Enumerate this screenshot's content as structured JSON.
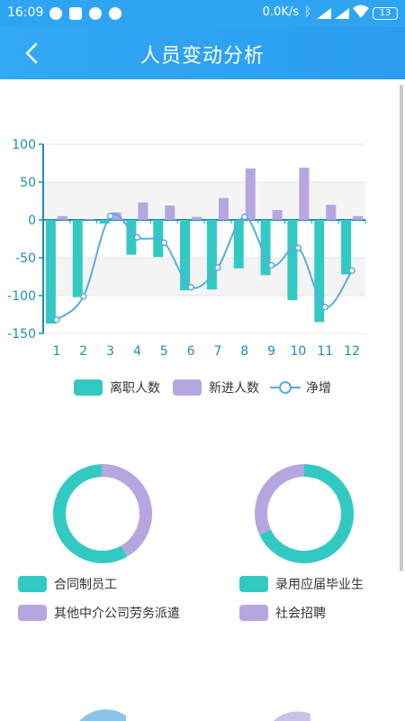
{
  "status_bar": {
    "time": "16:09",
    "network_speed": "0.0K/s",
    "battery_level": "13",
    "icons": [
      "notification-icon",
      "notification-icon",
      "notification-icon",
      "notification-icon",
      "bluetooth-icon",
      "signal-icon",
      "signal-icon",
      "wifi-icon",
      "battery-icon"
    ]
  },
  "header": {
    "title": "人员变动分析",
    "back_icon": "chevron-left-icon"
  },
  "colors": {
    "header": "#2fa4f3",
    "leave": "#33c9c3",
    "hire": "#b5a6e0",
    "net": "#5aacdf",
    "axis": "#1e8db4"
  },
  "chart_data": [
    {
      "type": "bar",
      "categories": [
        "1",
        "2",
        "3",
        "4",
        "5",
        "6",
        "7",
        "8",
        "9",
        "10",
        "11",
        "12"
      ],
      "ylim": [
        -150,
        100
      ],
      "y_ticks": [
        "100",
        "50",
        "0",
        "-50",
        "-100",
        "-150"
      ],
      "series": [
        {
          "name": "离职人数",
          "type": "bar",
          "values": [
            -137,
            -102,
            -5,
            -46,
            -49,
            -93,
            -92,
            -64,
            -73,
            -106,
            -135,
            -72
          ]
        },
        {
          "name": "新进人数",
          "type": "bar",
          "values": [
            5,
            1,
            10,
            23,
            19,
            4,
            29,
            68,
            13,
            69,
            20,
            5
          ]
        },
        {
          "name": "净增",
          "type": "line",
          "values": [
            -132,
            -101,
            5,
            -23,
            -30,
            -89,
            -63,
            4,
            -60,
            -37,
            -115,
            -67
          ]
        }
      ],
      "legend_position": "bottom"
    },
    {
      "type": "pie",
      "style": "donut",
      "labels": [
        "合同制员工",
        "其他中介公司劳务派遣"
      ],
      "values": [
        58,
        42
      ]
    },
    {
      "type": "pie",
      "style": "donut",
      "labels": [
        "录用应届毕业生",
        "社会招聘"
      ],
      "values": [
        68,
        32
      ]
    }
  ],
  "legends": {
    "bar_chart": [
      "离职人数",
      "新进人数",
      "净增"
    ],
    "donut_left": [
      "合同制员工",
      "其他中介公司劳务派遣"
    ],
    "donut_right": [
      "录用应届毕业生",
      "社会招聘"
    ]
  }
}
